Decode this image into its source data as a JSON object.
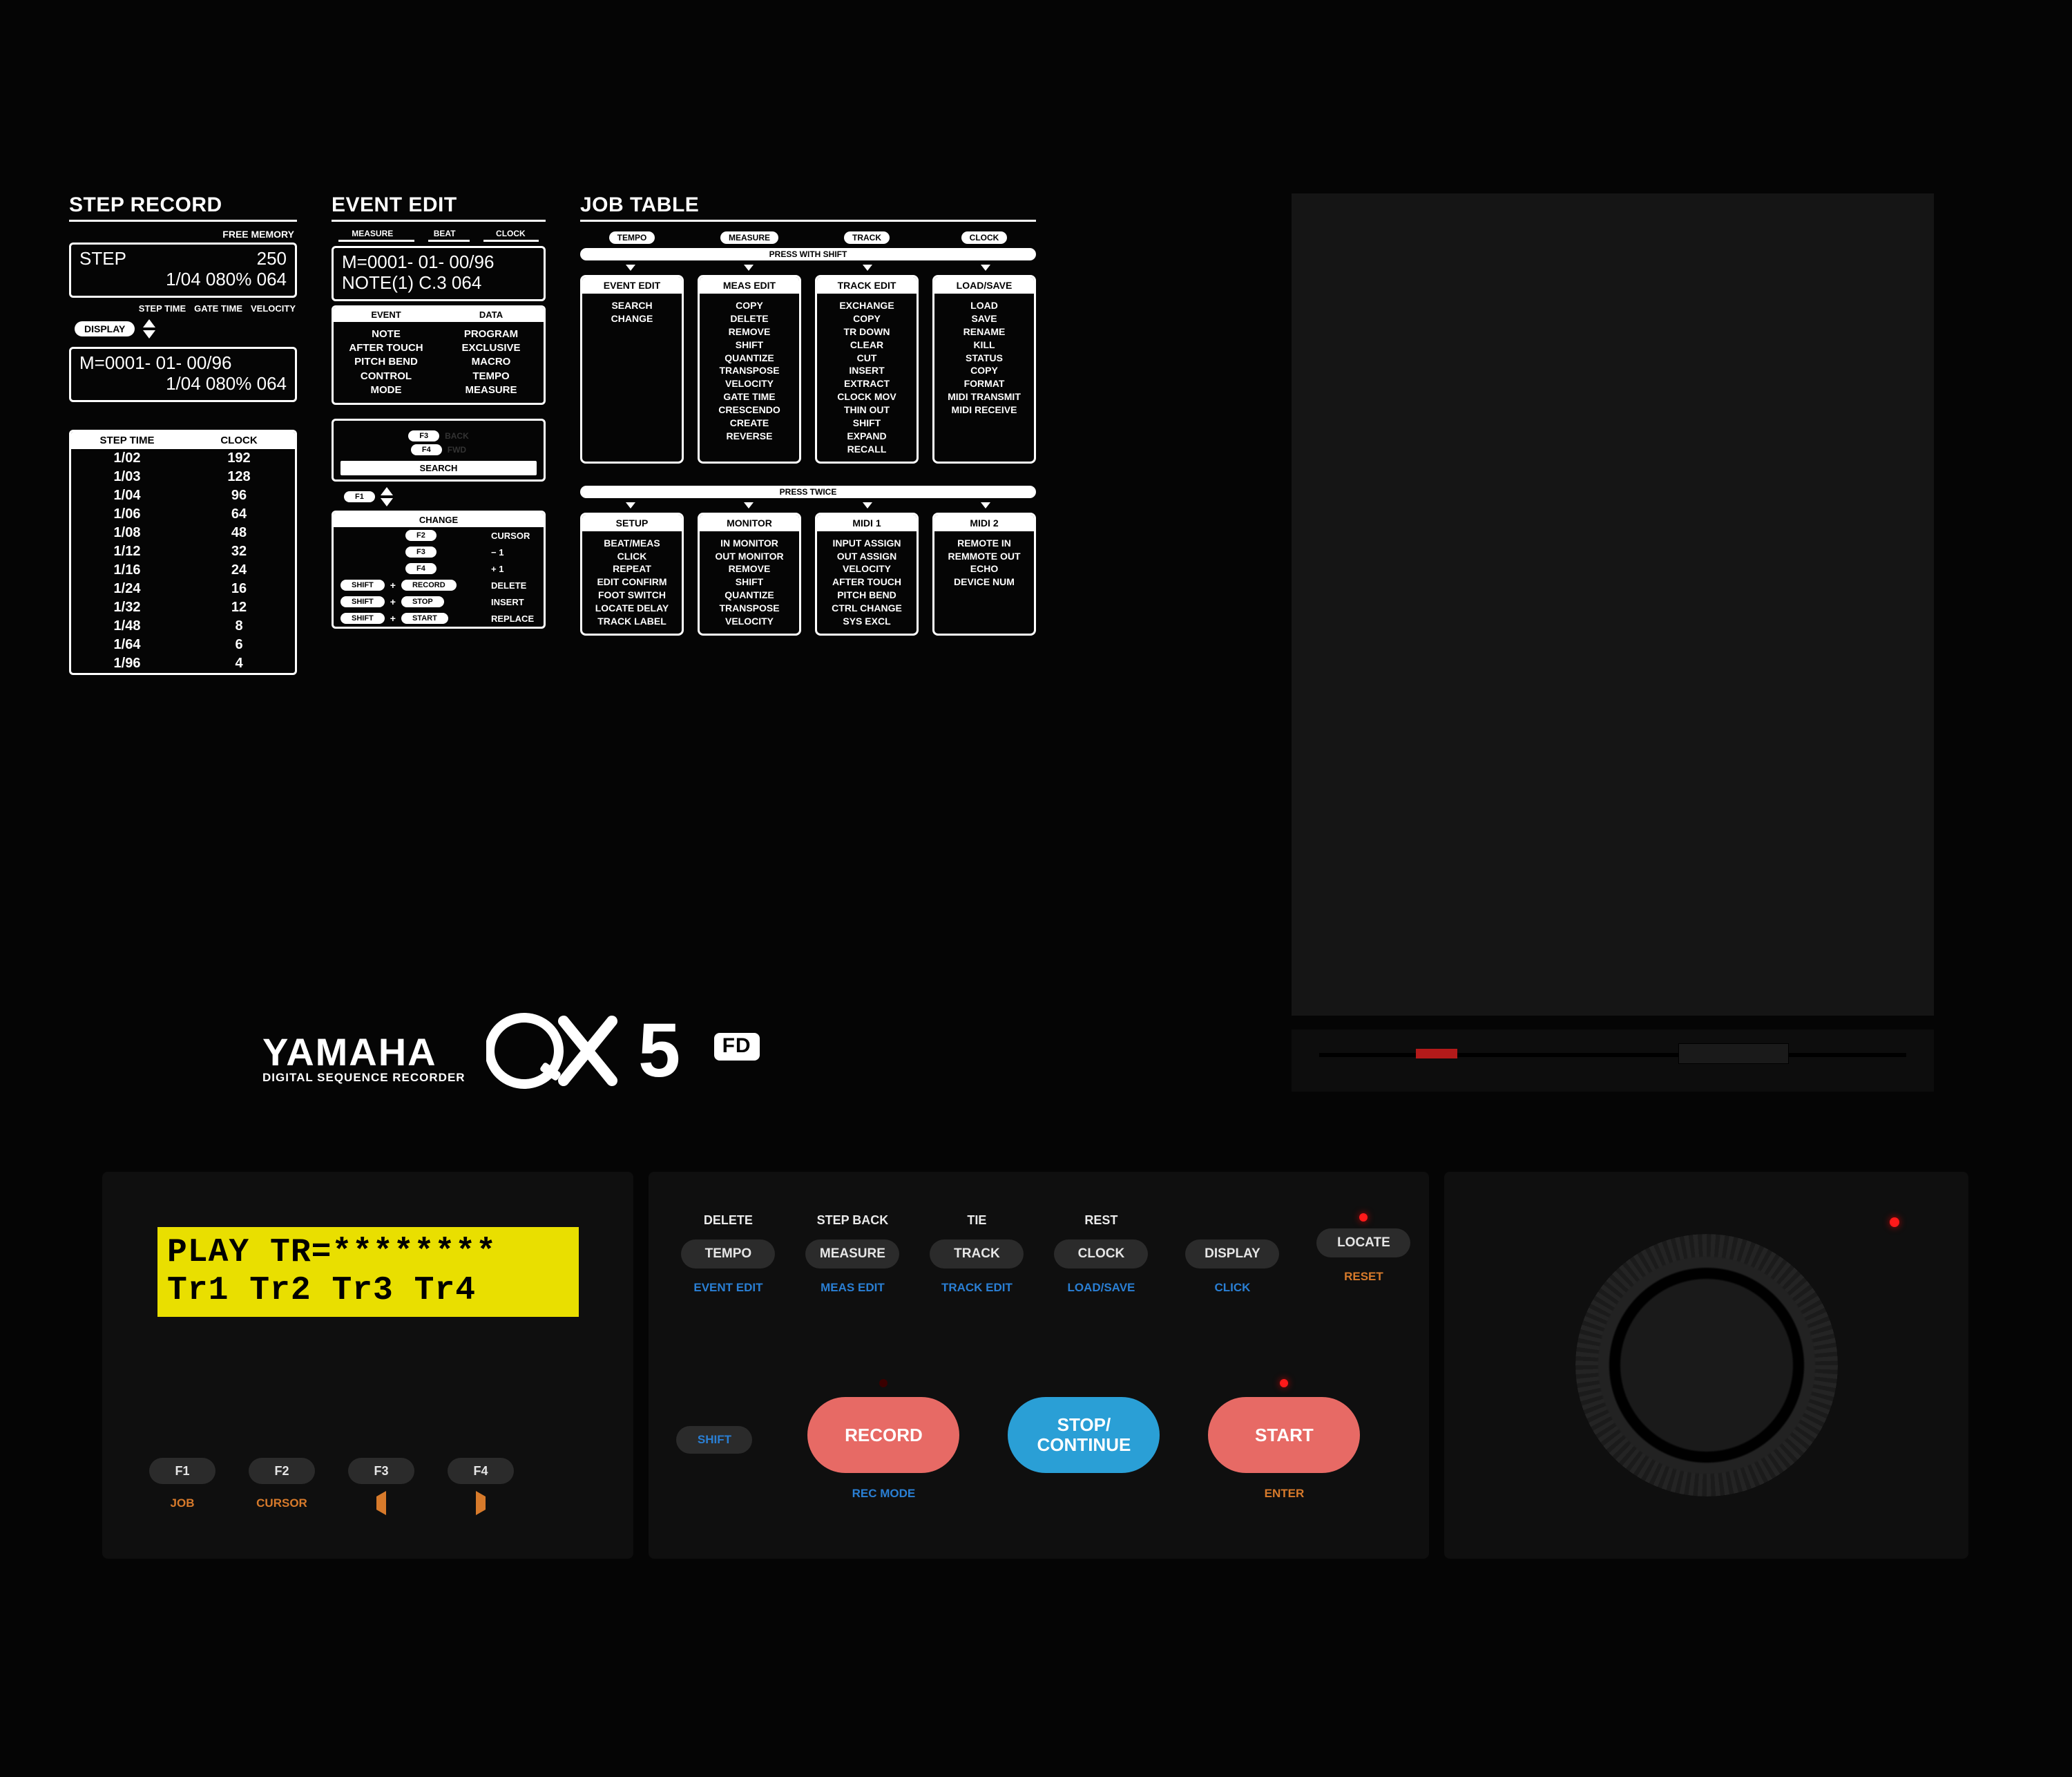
{
  "colors": {
    "bg": "#050505",
    "panel": "#0f0f0f",
    "btn": "#2b2b2b",
    "lcd": "#e9df00",
    "orange": "#d77a2b",
    "blue": "#2a7fd4",
    "salmon": "#e76a65",
    "sky": "#2a9fd6",
    "led": "#ff1a1a"
  },
  "step_record": {
    "title": "STEP RECORD",
    "free_memory_label": "FREE MEMORY",
    "lcd1": {
      "l1a": "STEP",
      "l1b": "250",
      "l2": "1/04  080% 064"
    },
    "hdr": {
      "a": "STEP TIME",
      "b": "GATE TIME",
      "c": "VELOCITY"
    },
    "display_label": "DISPLAY",
    "lcd2": {
      "l1": "M=0001- 01- 00/96",
      "l2": "1/04  080% 064"
    },
    "table": {
      "head": [
        "STEP TIME",
        "CLOCK"
      ],
      "rows": [
        [
          "1/02",
          "192"
        ],
        [
          "1/03",
          "128"
        ],
        [
          "1/04",
          "96"
        ],
        [
          "1/06",
          "64"
        ],
        [
          "1/08",
          "48"
        ],
        [
          "1/12",
          "32"
        ],
        [
          "1/16",
          "24"
        ],
        [
          "1/24",
          "16"
        ],
        [
          "1/32",
          "12"
        ],
        [
          "1/48",
          "8"
        ],
        [
          "1/64",
          "6"
        ],
        [
          "1/96",
          "4"
        ]
      ]
    }
  },
  "event_edit": {
    "title": "EVENT EDIT",
    "mbc": [
      "MEASURE",
      "BEAT",
      "CLOCK"
    ],
    "lcd": {
      "l1": "M=0001- 01- 00/96",
      "l2": "NOTE(1)      C.3 064"
    },
    "cols_hdr": [
      "EVENT",
      "DATA"
    ],
    "event_col": [
      "NOTE",
      "AFTER TOUCH",
      "PITCH BEND",
      "CONTROL",
      "MODE"
    ],
    "data_col": [
      "PROGRAM",
      "EXCLUSIVE",
      "MACRO",
      "TEMPO",
      "MEASURE"
    ],
    "mid": {
      "f3": "F3",
      "f3g": "BACK",
      "f4": "F4",
      "f4g": "FWD",
      "search": "SEARCH",
      "f1": "F1"
    },
    "change": {
      "hdr": "CHANGE",
      "rows": [
        {
          "key": "F2",
          "label": "CURSOR"
        },
        {
          "key": "F3",
          "label": "− 1"
        },
        {
          "key": "F4",
          "label": "+ 1"
        },
        {
          "shift": "SHIFT",
          "plus": "+",
          "key": "RECORD",
          "label": "DELETE"
        },
        {
          "shift": "SHIFT",
          "plus": "+",
          "key": "STOP",
          "label": "INSERT"
        },
        {
          "shift": "SHIFT",
          "plus": "+",
          "key": "START",
          "label": "REPLACE"
        }
      ]
    }
  },
  "job_table": {
    "title": "JOB TABLE",
    "top_pills": [
      "TEMPO",
      "MEASURE",
      "TRACK",
      "CLOCK"
    ],
    "press_shift": "PRESS WITH SHIFT",
    "press_twice": "PRESS TWICE",
    "shift_cols": [
      {
        "hdr": "EVENT EDIT",
        "items": [
          "SEARCH",
          "CHANGE"
        ]
      },
      {
        "hdr": "MEAS EDIT",
        "items": [
          "COPY",
          "DELETE",
          "REMOVE",
          "SHIFT",
          "QUANTIZE",
          "TRANSPOSE",
          "VELOCITY",
          "GATE TIME",
          "CRESCENDO",
          "CREATE",
          "REVERSE"
        ]
      },
      {
        "hdr": "TRACK EDIT",
        "items": [
          "EXCHANGE",
          "COPY",
          "TR DOWN",
          "CLEAR",
          "CUT",
          "INSERT",
          "EXTRACT",
          "CLOCK MOV",
          "THIN OUT",
          "SHIFT",
          "EXPAND",
          "RECALL"
        ]
      },
      {
        "hdr": "LOAD/SAVE",
        "items": [
          "LOAD",
          "SAVE",
          "RENAME",
          "KILL",
          "STATUS",
          "COPY",
          "FORMAT",
          "MIDI TRANSMIT",
          "MIDI RECEIVE"
        ]
      }
    ],
    "twice_cols": [
      {
        "hdr": "SETUP",
        "items": [
          "BEAT/MEAS",
          "CLICK",
          "REPEAT",
          "EDIT CONFIRM",
          "FOOT SWITCH",
          "LOCATE DELAY",
          "TRACK LABEL"
        ]
      },
      {
        "hdr": "MONITOR",
        "items": [
          "IN MONITOR",
          "OUT MONITOR",
          "REMOVE",
          "SHIFT",
          "QUANTIZE",
          "TRANSPOSE",
          "VELOCITY"
        ]
      },
      {
        "hdr": "MIDI 1",
        "items": [
          "INPUT ASSIGN",
          "OUT ASSIGN",
          "VELOCITY",
          "AFTER TOUCH",
          "PITCH BEND",
          "CTRL CHANGE",
          "SYS EXCL"
        ]
      },
      {
        "hdr": "MIDI 2",
        "items": [
          "REMOTE IN",
          "REMMOTE OUT",
          "ECHO",
          "DEVICE NUM"
        ]
      }
    ]
  },
  "logo": {
    "brand": "YAMAHA",
    "sub": "DIGITAL SEQUENCE RECORDER",
    "model_num": "5",
    "suffix": "FD"
  },
  "lcd": {
    "line1": "PLAY TR=********",
    "line2": "Tr1 Tr2 Tr3 Tr4"
  },
  "fn": [
    {
      "key": "F1",
      "under": "JOB"
    },
    {
      "key": "F2",
      "under": "CURSOR"
    },
    {
      "key": "F3",
      "under": "◁"
    },
    {
      "key": "F4",
      "under": "▷"
    }
  ],
  "mid_buttons": [
    {
      "top": "DELETE",
      "label": "TEMPO",
      "under": "EVENT EDIT",
      "under_color": "blue"
    },
    {
      "top": "STEP BACK",
      "label": "MEASURE",
      "under": "MEAS EDIT",
      "under_color": "blue"
    },
    {
      "top": "TIE",
      "label": "TRACK",
      "under": "TRACK EDIT",
      "under_color": "blue"
    },
    {
      "top": "REST",
      "label": "CLOCK",
      "under": "LOAD/SAVE",
      "under_color": "blue"
    },
    {
      "top": "",
      "label": "DISPLAY",
      "under": "CLICK",
      "under_color": "blue"
    },
    {
      "top": "",
      "label": "LOCATE",
      "under": "RESET",
      "under_color": "orange",
      "led": true
    }
  ],
  "shift_label": "SHIFT",
  "big_buttons": [
    {
      "label": "RECORD",
      "under": "REC MODE",
      "under_color": "blue",
      "color": "salmon",
      "led": "off"
    },
    {
      "label": "STOP/\nCONTINUE",
      "under": "",
      "color": "sky",
      "led": "none"
    },
    {
      "label": "START",
      "under": "ENTER",
      "under_color": "orange",
      "color": "salmon",
      "led": "on"
    }
  ]
}
